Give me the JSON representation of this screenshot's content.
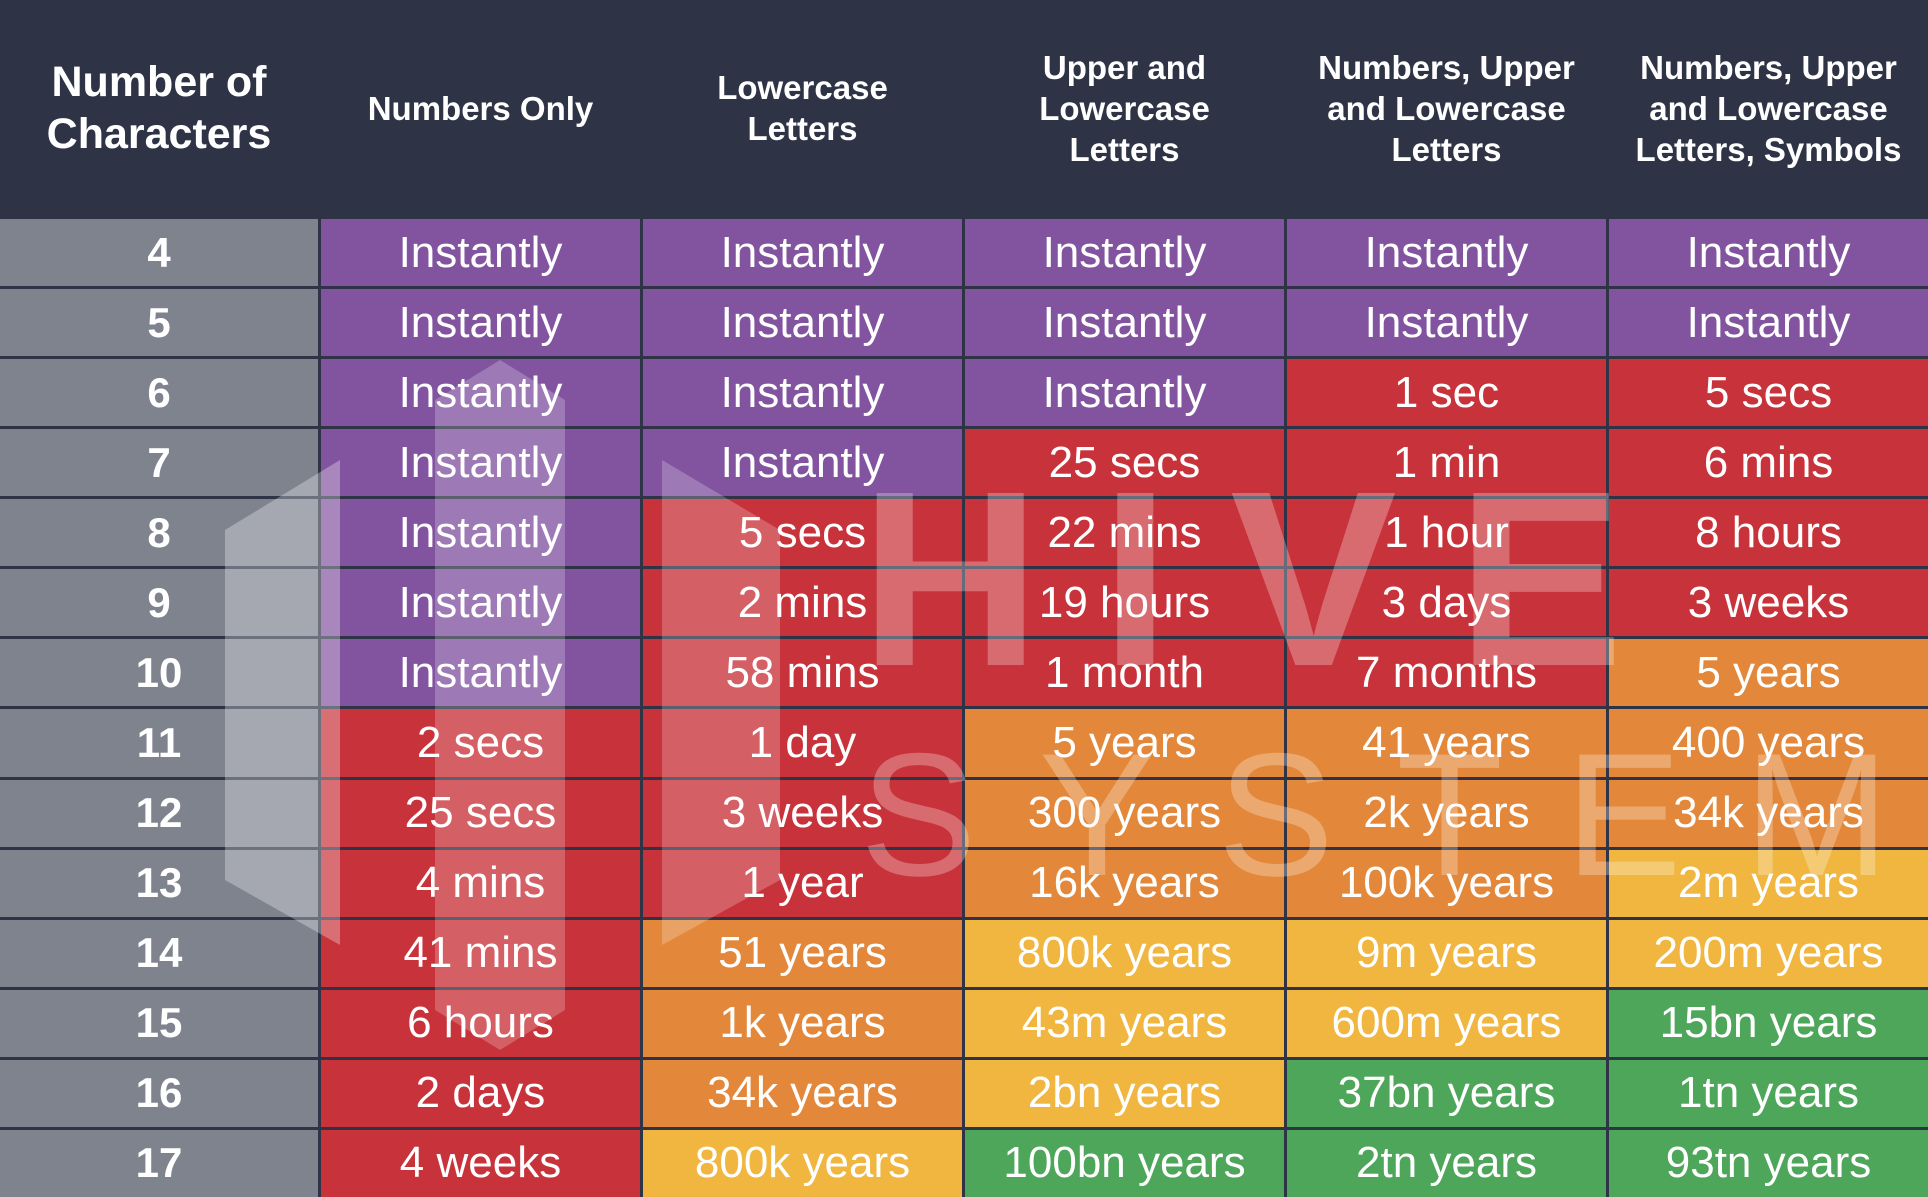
{
  "table": {
    "header": [
      "Number of\nCharacters",
      "Numbers Only",
      "Lowercase\nLetters",
      "Upper and\nLowercase\nLetters",
      "Numbers, Upper\nand Lowercase\nLetters",
      "Numbers, Upper\nand Lowercase\nLetters, Symbols"
    ],
    "rows": [
      {
        "label": "4",
        "cells": [
          "Instantly",
          "Instantly",
          "Instantly",
          "Instantly",
          "Instantly"
        ],
        "colors": [
          "#8254a0",
          "#8254a0",
          "#8254a0",
          "#8254a0",
          "#8254a0"
        ]
      },
      {
        "label": "5",
        "cells": [
          "Instantly",
          "Instantly",
          "Instantly",
          "Instantly",
          "Instantly"
        ],
        "colors": [
          "#8254a0",
          "#8254a0",
          "#8254a0",
          "#8254a0",
          "#8254a0"
        ]
      },
      {
        "label": "6",
        "cells": [
          "Instantly",
          "Instantly",
          "Instantly",
          "1 sec",
          "5 secs"
        ],
        "colors": [
          "#8254a0",
          "#8254a0",
          "#8254a0",
          "#c8323a",
          "#c8323a"
        ]
      },
      {
        "label": "7",
        "cells": [
          "Instantly",
          "Instantly",
          "25 secs",
          "1 min",
          "6 mins"
        ],
        "colors": [
          "#8254a0",
          "#8254a0",
          "#c8323a",
          "#c8323a",
          "#c8323a"
        ]
      },
      {
        "label": "8",
        "cells": [
          "Instantly",
          "5 secs",
          "22 mins",
          "1 hour",
          "8 hours"
        ],
        "colors": [
          "#8254a0",
          "#c8323a",
          "#c8323a",
          "#c8323a",
          "#c8323a"
        ]
      },
      {
        "label": "9",
        "cells": [
          "Instantly",
          "2 mins",
          "19 hours",
          "3 days",
          "3 weeks"
        ],
        "colors": [
          "#8254a0",
          "#c8323a",
          "#c8323a",
          "#c8323a",
          "#c8323a"
        ]
      },
      {
        "label": "10",
        "cells": [
          "Instantly",
          "58 mins",
          "1 month",
          "7 months",
          "5 years"
        ],
        "colors": [
          "#8254a0",
          "#c8323a",
          "#c8323a",
          "#c8323a",
          "#e3883a"
        ]
      },
      {
        "label": "11",
        "cells": [
          "2 secs",
          "1 day",
          "5 years",
          "41 years",
          "400 years"
        ],
        "colors": [
          "#c8323a",
          "#c8323a",
          "#e3883a",
          "#e3883a",
          "#e3883a"
        ]
      },
      {
        "label": "12",
        "cells": [
          "25 secs",
          "3 weeks",
          "300 years",
          "2k years",
          "34k years"
        ],
        "colors": [
          "#c8323a",
          "#c8323a",
          "#e3883a",
          "#e3883a",
          "#e3883a"
        ]
      },
      {
        "label": "13",
        "cells": [
          "4 mins",
          "1 year",
          "16k years",
          "100k years",
          "2m years"
        ],
        "colors": [
          "#c8323a",
          "#c8323a",
          "#e3883a",
          "#e3883a",
          "#f0b640"
        ]
      },
      {
        "label": "14",
        "cells": [
          "41 mins",
          "51 years",
          "800k years",
          "9m years",
          "200m years"
        ],
        "colors": [
          "#c8323a",
          "#e3883a",
          "#f0b640",
          "#f0b640",
          "#f0b640"
        ]
      },
      {
        "label": "15",
        "cells": [
          "6 hours",
          "1k years",
          "43m years",
          "600m years",
          "15bn years"
        ],
        "colors": [
          "#c8323a",
          "#e3883a",
          "#f0b640",
          "#f0b640",
          "#4ea65a"
        ]
      },
      {
        "label": "16",
        "cells": [
          "2 days",
          "34k years",
          "2bn years",
          "37bn years",
          "1tn years"
        ],
        "colors": [
          "#c8323a",
          "#e3883a",
          "#f0b640",
          "#4ea65a",
          "#4ea65a"
        ]
      },
      {
        "label": "17",
        "cells": [
          "4 weeks",
          "800k years",
          "100bn years",
          "2tn years",
          "93tn years"
        ],
        "colors": [
          "#c8323a",
          "#f0b640",
          "#4ea65a",
          "#4ea65a",
          "#4ea65a"
        ]
      }
    ]
  },
  "watermark": {
    "line1": "HIVE",
    "line2": "SYSTEMS"
  }
}
